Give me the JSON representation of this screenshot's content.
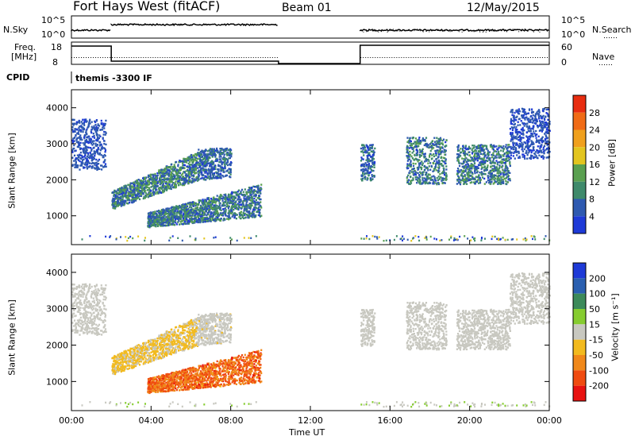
{
  "header": {
    "radar": "Fort Hays West (fitACF)",
    "beam": "Beam 01",
    "date": "12/May/2015"
  },
  "summary": {
    "nsky_label": "N.Sky",
    "nsky_ticks": [
      "10^5",
      "10^0"
    ],
    "nsearch_label": "N.Search",
    "nsearch_ticks": [
      "10^5",
      "10^0"
    ],
    "freq_label_1": "Freq.",
    "freq_label_2": "[MHz]",
    "freq_ticks": [
      "18",
      "8"
    ],
    "nave_label": "Nave",
    "nave_ticks": [
      "60",
      "0"
    ],
    "cpid_label": "CPID",
    "cpid_text": "themis -3300 IF"
  },
  "colors": {
    "power": [
      "#1e3ad7",
      "#2e59b0",
      "#3f8a6b",
      "#5aa050",
      "#e3c51f",
      "#f0a01d",
      "#f06b16",
      "#e82d10"
    ],
    "velocity": [
      "#e81210",
      "#f04b10",
      "#f0881a",
      "#f2ba1e",
      "#c8c8c0",
      "#86cc30",
      "#3c8a5a",
      "#2a5fb0",
      "#1e3ad7"
    ]
  },
  "chart_data": [
    {
      "type": "heatmap",
      "title": "",
      "xlabel": "",
      "ylabel": "Slant Range [km]",
      "xlim": [
        0,
        24
      ],
      "ylim": [
        200,
        4500
      ],
      "x_ticks": [
        "00:00",
        "04:00",
        "08:00",
        "12:00",
        "16:00",
        "20:00",
        "00:00"
      ],
      "y_ticks": [
        "1000",
        "2000",
        "3000",
        "4000"
      ],
      "colorbar_label": "Power [dB]",
      "colorbar_ticks": [
        "4",
        "8",
        "12",
        "16",
        "20",
        "24",
        "28"
      ],
      "clim": [
        0,
        32
      ],
      "regions": [
        {
          "t0": 0.0,
          "t1": 1.7,
          "r0": 2300,
          "r1": 3700,
          "v0": 3,
          "v1": 8
        },
        {
          "t0": 2.0,
          "t1": 6.3,
          "r_lo0": 1200,
          "r_lo1": 2000,
          "r_hi0": 1700,
          "r_hi1": 2800,
          "v0": 3,
          "v1": 16
        },
        {
          "t0": 6.3,
          "t1": 8.0,
          "r_lo0": 2000,
          "r_lo1": 2100,
          "r_hi0": 2900,
          "r_hi1": 2900,
          "v0": 3,
          "v1": 10
        },
        {
          "t0": 3.8,
          "t1": 9.5,
          "r_lo0": 700,
          "r_lo1": 1000,
          "r_hi0": 1100,
          "r_hi1": 1900,
          "v0": 3,
          "v1": 14
        },
        {
          "t0": 14.5,
          "t1": 15.2,
          "r0": 2000,
          "r1": 3000,
          "v0": 3,
          "v1": 10
        },
        {
          "t0": 16.8,
          "t1": 18.8,
          "r0": 1900,
          "r1": 3200,
          "v0": 3,
          "v1": 14
        },
        {
          "t0": 19.3,
          "t1": 22.0,
          "r0": 1900,
          "r1": 3000,
          "v0": 3,
          "v1": 14
        },
        {
          "t0": 22.0,
          "t1": 24.0,
          "r0": 2600,
          "r1": 4000,
          "v0": 3,
          "v1": 6
        }
      ]
    },
    {
      "type": "heatmap",
      "title": "",
      "xlabel": "Time UT",
      "ylabel": "Slant Range [km]",
      "xlim": [
        0,
        24
      ],
      "ylim": [
        200,
        4500
      ],
      "x_ticks": [
        "00:00",
        "04:00",
        "08:00",
        "12:00",
        "16:00",
        "20:00",
        "00:00"
      ],
      "y_ticks": [
        "1000",
        "2000",
        "3000",
        "4000"
      ],
      "colorbar_label": "Velocity [m s⁻¹]",
      "colorbar_ticks": [
        "200",
        "100",
        "50",
        "15",
        "-15",
        "-50",
        "-100",
        "-200"
      ],
      "clim": [
        -250,
        250
      ],
      "regions": [
        {
          "t0": 0.0,
          "t1": 1.7,
          "r0": 2300,
          "r1": 3700,
          "v0": -15,
          "v1": 15
        },
        {
          "t0": 2.0,
          "t1": 6.3,
          "r_lo0": 1200,
          "r_lo1": 2000,
          "r_hi0": 1700,
          "r_hi1": 2800,
          "v0": -70,
          "v1": -10
        },
        {
          "t0": 6.3,
          "t1": 8.0,
          "r_lo0": 2000,
          "r_lo1": 2100,
          "r_hi0": 2900,
          "r_hi1": 2900,
          "v0": -30,
          "v1": 20
        },
        {
          "t0": 3.8,
          "t1": 9.5,
          "r_lo0": 700,
          "r_lo1": 1000,
          "r_hi0": 1100,
          "r_hi1": 1900,
          "v0": -200,
          "v1": -80
        },
        {
          "t0": 14.5,
          "t1": 15.2,
          "r0": 2000,
          "r1": 3000,
          "v0": -15,
          "v1": 15
        },
        {
          "t0": 16.8,
          "t1": 18.8,
          "r0": 1900,
          "r1": 3200,
          "v0": -15,
          "v1": 15
        },
        {
          "t0": 19.3,
          "t1": 22.0,
          "r0": 1900,
          "r1": 3000,
          "v0": -15,
          "v1": 15
        },
        {
          "t0": 22.0,
          "t1": 24.0,
          "r0": 2600,
          "r1": 4000,
          "v0": -15,
          "v1": 15
        }
      ]
    }
  ]
}
